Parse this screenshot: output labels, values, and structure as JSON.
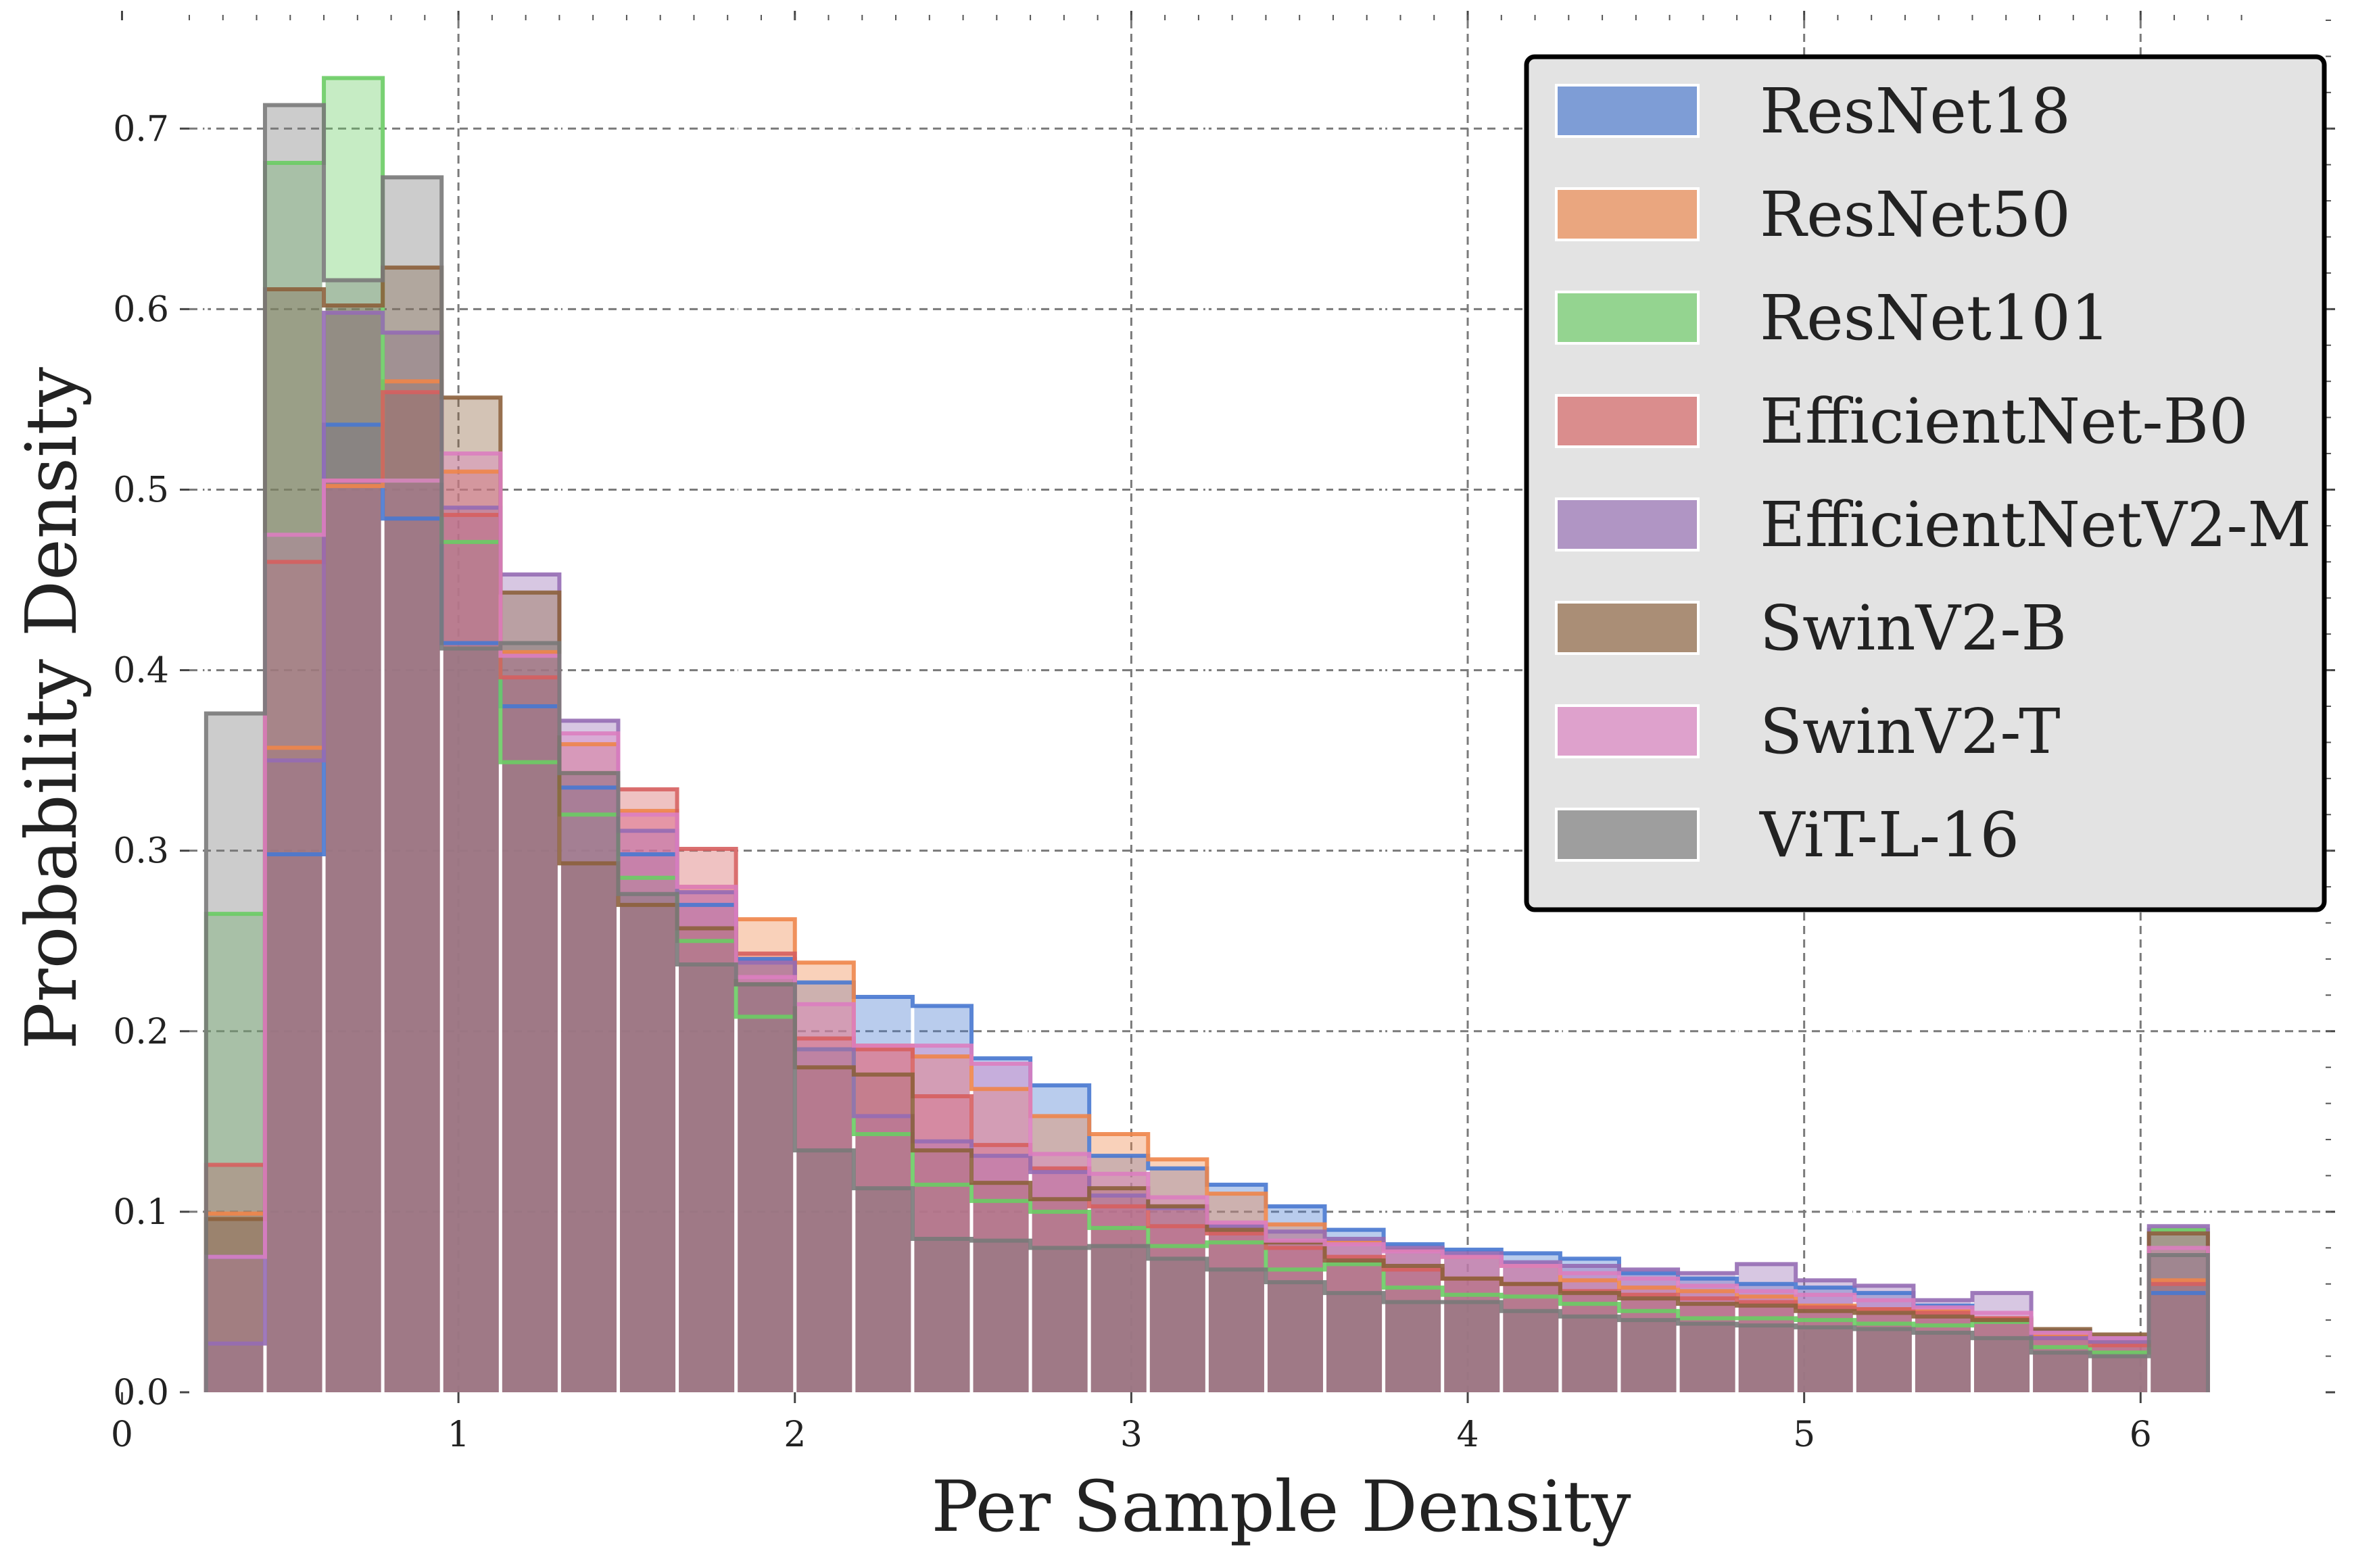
{
  "chart_data": {
    "type": "bar",
    "subtype": "overlaid-step-histogram",
    "title": "",
    "xlabel": "Per Sample Density",
    "ylabel": "Probability Density",
    "xlim": [
      0,
      6.5
    ],
    "ylim": [
      0,
      0.76
    ],
    "xticks": [
      "0",
      "1",
      "2",
      "3",
      "4",
      "5",
      "6"
    ],
    "yticks": [
      "0.0",
      "0.1",
      "0.2",
      "0.3",
      "0.4",
      "0.5",
      "0.6",
      "0.7"
    ],
    "grid": true,
    "legend_position": "top-right",
    "bin_start": 0.25,
    "bin_width": 0.175,
    "series": [
      {
        "name": "ResNet18",
        "color": "#4878d0",
        "values": [
          0.075,
          0.298,
          0.536,
          0.484,
          0.415,
          0.38,
          0.335,
          0.298,
          0.27,
          0.24,
          0.227,
          0.219,
          0.214,
          0.185,
          0.17,
          0.131,
          0.124,
          0.115,
          0.103,
          0.09,
          0.082,
          0.079,
          0.077,
          0.074,
          0.066,
          0.063,
          0.06,
          0.058,
          0.055,
          0.048,
          0.041,
          0.034,
          0.03,
          0.055
        ]
      },
      {
        "name": "ResNet50",
        "color": "#ee854a",
        "values": [
          0.099,
          0.357,
          0.502,
          0.56,
          0.51,
          0.41,
          0.359,
          0.322,
          0.28,
          0.262,
          0.238,
          0.192,
          0.186,
          0.168,
          0.153,
          0.143,
          0.129,
          0.11,
          0.093,
          0.083,
          0.079,
          0.075,
          0.07,
          0.062,
          0.058,
          0.056,
          0.053,
          0.048,
          0.046,
          0.045,
          0.041,
          0.032,
          0.028,
          0.062
        ]
      },
      {
        "name": "ResNet101",
        "color": "#6acc64",
        "values": [
          0.265,
          0.681,
          0.728,
          0.505,
          0.471,
          0.349,
          0.32,
          0.285,
          0.25,
          0.208,
          0.19,
          0.143,
          0.115,
          0.106,
          0.1,
          0.091,
          0.081,
          0.083,
          0.068,
          0.071,
          0.058,
          0.054,
          0.053,
          0.049,
          0.045,
          0.041,
          0.041,
          0.04,
          0.038,
          0.037,
          0.039,
          0.025,
          0.022,
          0.09
        ]
      },
      {
        "name": "EfficientNet-B0",
        "color": "#d65f5f",
        "values": [
          0.126,
          0.46,
          0.505,
          0.554,
          0.486,
          0.396,
          0.343,
          0.334,
          0.301,
          0.243,
          0.196,
          0.19,
          0.164,
          0.137,
          0.124,
          0.103,
          0.092,
          0.088,
          0.08,
          0.075,
          0.068,
          0.063,
          0.06,
          0.056,
          0.054,
          0.052,
          0.05,
          0.047,
          0.046,
          0.044,
          0.041,
          0.03,
          0.026,
          0.06
        ]
      },
      {
        "name": "EfficientNetV2-M",
        "color": "#956cb4",
        "values": [
          0.027,
          0.35,
          0.598,
          0.587,
          0.49,
          0.453,
          0.372,
          0.311,
          0.277,
          0.238,
          0.19,
          0.153,
          0.139,
          0.131,
          0.122,
          0.109,
          0.102,
          0.092,
          0.089,
          0.085,
          0.08,
          0.077,
          0.072,
          0.07,
          0.068,
          0.066,
          0.071,
          0.062,
          0.059,
          0.051,
          0.055,
          0.03,
          0.028,
          0.092
        ]
      },
      {
        "name": "SwinV2-B",
        "color": "#8c613c",
        "values": [
          0.096,
          0.611,
          0.602,
          0.623,
          0.551,
          0.443,
          0.293,
          0.27,
          0.257,
          0.226,
          0.18,
          0.176,
          0.134,
          0.116,
          0.107,
          0.113,
          0.103,
          0.09,
          0.083,
          0.073,
          0.07,
          0.063,
          0.06,
          0.055,
          0.052,
          0.049,
          0.048,
          0.045,
          0.044,
          0.042,
          0.04,
          0.035,
          0.032,
          0.088
        ]
      },
      {
        "name": "SwinV2-T",
        "color": "#dc7ec0",
        "values": [
          0.075,
          0.475,
          0.505,
          0.505,
          0.52,
          0.408,
          0.365,
          0.32,
          0.28,
          0.23,
          0.215,
          0.192,
          0.192,
          0.182,
          0.132,
          0.121,
          0.108,
          0.094,
          0.084,
          0.082,
          0.078,
          0.075,
          0.07,
          0.066,
          0.063,
          0.059,
          0.056,
          0.054,
          0.051,
          0.047,
          0.044,
          0.033,
          0.03,
          0.08
        ]
      },
      {
        "name": "ViT-L-16",
        "color": "#797979",
        "values": [
          0.376,
          0.713,
          0.616,
          0.673,
          0.412,
          0.415,
          0.343,
          0.276,
          0.237,
          0.226,
          0.134,
          0.113,
          0.085,
          0.084,
          0.08,
          0.081,
          0.074,
          0.068,
          0.061,
          0.055,
          0.05,
          0.05,
          0.045,
          0.042,
          0.04,
          0.038,
          0.037,
          0.036,
          0.035,
          0.033,
          0.03,
          0.022,
          0.02,
          0.076
        ]
      }
    ]
  }
}
